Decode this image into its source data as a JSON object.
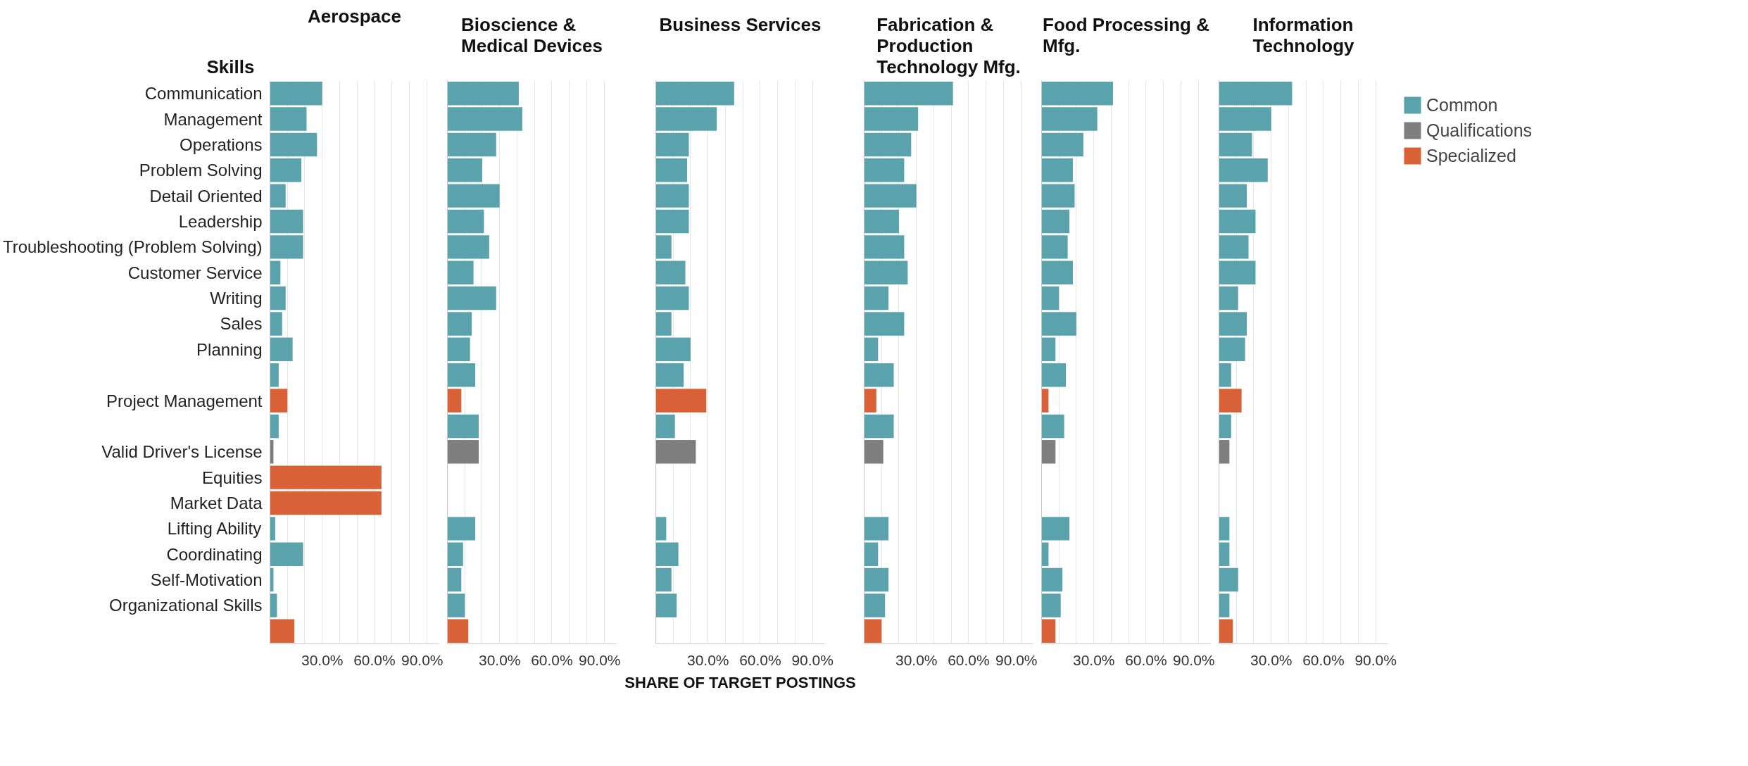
{
  "chart_data": [
    {
      "type": "bar",
      "orientation": "horizontal",
      "title": "Aerospace",
      "ylabel": "Skills",
      "categories": [
        "Communication",
        "Management",
        "Operations",
        "Problem Solving",
        "Detail Oriented",
        "Leadership",
        "Troubleshooting (Problem Solving)",
        "Customer Service",
        "Writing",
        "Sales",
        "Planning",
        null,
        "Project Management",
        null,
        "Valid Driver's License",
        "Equities",
        "Market Data",
        "Lifting Ability",
        "Coordinating",
        "Self-Motivation",
        "Organizational Skills",
        null
      ],
      "xlim": [
        0,
        97
      ],
      "xticks": [
        {
          "value": 10,
          "label": null
        },
        {
          "value": 20,
          "label": null
        },
        {
          "value": 30,
          "label": "30.0%"
        },
        {
          "value": 40,
          "label": null
        },
        {
          "value": 50,
          "label": null
        },
        {
          "value": 60,
          "label": "60.0%"
        },
        {
          "value": 70,
          "label": null
        },
        {
          "value": 80,
          "label": null
        },
        {
          "value": 90,
          "label": "90.0%"
        }
      ],
      "grid": "x",
      "legend": false,
      "series": [
        {
          "color": "#5ba3ac",
          "values": [
            30,
            21,
            27,
            18,
            9,
            19,
            19,
            6,
            9,
            7,
            13,
            5,
            null,
            5,
            null,
            null,
            null,
            3,
            19,
            2,
            4,
            null
          ]
        },
        {
          "color": "#7f7f7f",
          "values": [
            null,
            null,
            null,
            null,
            null,
            null,
            null,
            null,
            null,
            null,
            null,
            null,
            null,
            null,
            2,
            null,
            null,
            null,
            null,
            null,
            null,
            null
          ]
        },
        {
          "color": "#d86137",
          "values": [
            null,
            null,
            null,
            null,
            null,
            null,
            null,
            null,
            null,
            null,
            null,
            null,
            10,
            null,
            null,
            64,
            64,
            null,
            null,
            null,
            null,
            14
          ]
        }
      ]
    },
    {
      "type": "bar",
      "orientation": "horizontal",
      "title": "Bioscience & Medical Devices",
      "categories": [
        "Communication",
        "Management",
        "Operations",
        "Problem Solving",
        "Detail Oriented",
        "Leadership",
        "Troubleshooting (Problem Solving)",
        "Customer Service",
        "Writing",
        "Sales",
        "Planning",
        null,
        "Project Management",
        null,
        "Valid Driver's License",
        "Equities",
        "Market Data",
        "Lifting Ability",
        "Coordinating",
        "Self-Motivation",
        "Organizational Skills",
        null
      ],
      "xlim": [
        0,
        97
      ],
      "xticks": [
        {
          "value": 10,
          "label": null
        },
        {
          "value": 20,
          "label": null
        },
        {
          "value": 30,
          "label": "30.0%"
        },
        {
          "value": 40,
          "label": null
        },
        {
          "value": 50,
          "label": null
        },
        {
          "value": 60,
          "label": "60.0%"
        },
        {
          "value": 70,
          "label": null
        },
        {
          "value": 80,
          "label": null
        },
        {
          "value": 90,
          "label": "90.0%"
        }
      ],
      "grid": "x",
      "legend": false,
      "tick_labels": "x",
      "series": [
        {
          "color": "#5ba3ac",
          "values": [
            41,
            43,
            28,
            20,
            30,
            21,
            24,
            15,
            28,
            14,
            13,
            16,
            null,
            18,
            null,
            null,
            null,
            16,
            9,
            8,
            10,
            null
          ]
        },
        {
          "color": "#7f7f7f",
          "values": [
            null,
            null,
            null,
            null,
            null,
            null,
            null,
            null,
            null,
            null,
            null,
            null,
            null,
            null,
            18,
            null,
            null,
            null,
            null,
            null,
            null,
            null
          ]
        },
        {
          "color": "#d86137",
          "values": [
            null,
            null,
            null,
            null,
            null,
            null,
            null,
            null,
            null,
            null,
            null,
            null,
            8,
            null,
            null,
            null,
            null,
            null,
            null,
            null,
            null,
            12
          ]
        }
      ]
    },
    {
      "type": "bar",
      "orientation": "horizontal",
      "title": "Business Services",
      "xlabel": "SHARE OF TARGET POSTINGS",
      "categories": [
        "Communication",
        "Management",
        "Operations",
        "Problem Solving",
        "Detail Oriented",
        "Leadership",
        "Troubleshooting (Problem Solving)",
        "Customer Service",
        "Writing",
        "Sales",
        "Planning",
        null,
        "Project Management",
        null,
        "Valid Driver's License",
        "Equities",
        "Market Data",
        "Lifting Ability",
        "Coordinating",
        "Self-Motivation",
        "Organizational Skills",
        null
      ],
      "xlim": [
        0,
        97
      ],
      "xticks": [
        {
          "value": 10,
          "label": null
        },
        {
          "value": 20,
          "label": null
        },
        {
          "value": 30,
          "label": "30.0%"
        },
        {
          "value": 40,
          "label": null
        },
        {
          "value": 50,
          "label": null
        },
        {
          "value": 60,
          "label": "60.0%"
        },
        {
          "value": 70,
          "label": null
        },
        {
          "value": 80,
          "label": null
        },
        {
          "value": 90,
          "label": "90.0%"
        }
      ],
      "grid": "x",
      "legend": false,
      "tick_labels": "x",
      "series": [
        {
          "color": "#5ba3ac",
          "values": [
            45,
            35,
            19,
            18,
            19,
            19,
            9,
            17,
            19,
            9,
            20,
            16,
            null,
            11,
            null,
            null,
            null,
            6,
            13,
            9,
            12,
            null
          ]
        },
        {
          "color": "#7f7f7f",
          "values": [
            null,
            null,
            null,
            null,
            null,
            null,
            null,
            null,
            null,
            null,
            null,
            null,
            null,
            null,
            23,
            null,
            null,
            null,
            null,
            null,
            null,
            null
          ]
        },
        {
          "color": "#d86137",
          "values": [
            null,
            null,
            null,
            null,
            null,
            null,
            null,
            null,
            null,
            null,
            null,
            null,
            29,
            null,
            null,
            null,
            null,
            null,
            null,
            null,
            null,
            null
          ]
        }
      ]
    },
    {
      "type": "bar",
      "orientation": "horizontal",
      "title": "Fabrication & Production Technology Mfg.",
      "categories": [
        "Communication",
        "Management",
        "Operations",
        "Problem Solving",
        "Detail Oriented",
        "Leadership",
        "Troubleshooting (Problem Solving)",
        "Customer Service",
        "Writing",
        "Sales",
        "Planning",
        null,
        "Project Management",
        null,
        "Valid Driver's License",
        "Equities",
        "Market Data",
        "Lifting Ability",
        "Coordinating",
        "Self-Motivation",
        "Organizational Skills",
        null
      ],
      "xlim": [
        0,
        97
      ],
      "xticks": [
        {
          "value": 10,
          "label": null
        },
        {
          "value": 20,
          "label": null
        },
        {
          "value": 30,
          "label": "30.0%"
        },
        {
          "value": 40,
          "label": null
        },
        {
          "value": 50,
          "label": null
        },
        {
          "value": 60,
          "label": "60.0%"
        },
        {
          "value": 70,
          "label": null
        },
        {
          "value": 80,
          "label": null
        },
        {
          "value": 90,
          "label": "90.0%"
        }
      ],
      "grid": "x",
      "legend": false,
      "tick_labels": "x",
      "series": [
        {
          "color": "#5ba3ac",
          "values": [
            51,
            31,
            27,
            23,
            30,
            20,
            23,
            25,
            14,
            23,
            8,
            17,
            null,
            17,
            null,
            null,
            null,
            14,
            8,
            14,
            12,
            null
          ]
        },
        {
          "color": "#7f7f7f",
          "values": [
            null,
            null,
            null,
            null,
            null,
            null,
            null,
            null,
            null,
            null,
            null,
            null,
            null,
            null,
            11,
            null,
            null,
            null,
            null,
            null,
            null,
            null
          ]
        },
        {
          "color": "#d86137",
          "values": [
            null,
            null,
            null,
            null,
            null,
            null,
            null,
            null,
            null,
            null,
            null,
            null,
            7,
            null,
            null,
            null,
            null,
            null,
            null,
            null,
            null,
            10
          ]
        }
      ]
    },
    {
      "type": "bar",
      "orientation": "horizontal",
      "title": "Food Processing & Mfg.",
      "categories": [
        "Communication",
        "Management",
        "Operations",
        "Problem Solving",
        "Detail Oriented",
        "Leadership",
        "Troubleshooting (Problem Solving)",
        "Customer Service",
        "Writing",
        "Sales",
        "Planning",
        null,
        "Project Management",
        null,
        "Valid Driver's License",
        "Equities",
        "Market Data",
        "Lifting Ability",
        "Coordinating",
        "Self-Motivation",
        "Organizational Skills",
        null
      ],
      "xlim": [
        0,
        97
      ],
      "xticks": [
        {
          "value": 10,
          "label": null
        },
        {
          "value": 20,
          "label": null
        },
        {
          "value": 30,
          "label": "30.0%"
        },
        {
          "value": 40,
          "label": null
        },
        {
          "value": 50,
          "label": null
        },
        {
          "value": 60,
          "label": "60.0%"
        },
        {
          "value": 70,
          "label": null
        },
        {
          "value": 80,
          "label": null
        },
        {
          "value": 90,
          "label": "90.0%"
        }
      ],
      "grid": "x",
      "legend": false,
      "tick_labels": "x",
      "series": [
        {
          "color": "#5ba3ac",
          "values": [
            41,
            32,
            24,
            18,
            19,
            16,
            15,
            18,
            10,
            20,
            8,
            14,
            null,
            13,
            null,
            null,
            null,
            16,
            4,
            12,
            11,
            null
          ]
        },
        {
          "color": "#7f7f7f",
          "values": [
            null,
            null,
            null,
            null,
            null,
            null,
            null,
            null,
            null,
            null,
            null,
            null,
            null,
            null,
            8,
            null,
            null,
            null,
            null,
            null,
            null,
            null
          ]
        },
        {
          "color": "#d86137",
          "values": [
            null,
            null,
            null,
            null,
            null,
            null,
            null,
            null,
            null,
            null,
            null,
            null,
            4,
            null,
            null,
            null,
            null,
            null,
            null,
            null,
            null,
            8
          ]
        }
      ]
    },
    {
      "type": "bar",
      "orientation": "horizontal",
      "title": "Information Technology",
      "categories": [
        "Communication",
        "Management",
        "Operations",
        "Problem Solving",
        "Detail Oriented",
        "Leadership",
        "Troubleshooting (Problem Solving)",
        "Customer Service",
        "Writing",
        "Sales",
        "Planning",
        null,
        "Project Management",
        null,
        "Valid Driver's License",
        "Equities",
        "Market Data",
        "Lifting Ability",
        "Coordinating",
        "Self-Motivation",
        "Organizational Skills",
        null
      ],
      "xlim": [
        0,
        97
      ],
      "xticks": [
        {
          "value": 10,
          "label": null
        },
        {
          "value": 20,
          "label": null
        },
        {
          "value": 30,
          "label": "30.0%"
        },
        {
          "value": 40,
          "label": null
        },
        {
          "value": 50,
          "label": null
        },
        {
          "value": 60,
          "label": "60.0%"
        },
        {
          "value": 70,
          "label": null
        },
        {
          "value": 80,
          "label": null
        },
        {
          "value": 90,
          "label": "90.0%"
        }
      ],
      "grid": "x",
      "legend": "top right",
      "tick_labels": "x",
      "series": [
        {
          "name": "Common",
          "color": "#5ba3ac",
          "values": [
            42,
            30,
            19,
            28,
            16,
            21,
            17,
            21,
            11,
            16,
            15,
            7,
            null,
            7,
            null,
            null,
            null,
            6,
            6,
            11,
            6,
            null
          ]
        },
        {
          "name": "Qualifications",
          "color": "#7f7f7f",
          "values": [
            null,
            null,
            null,
            null,
            null,
            null,
            null,
            null,
            null,
            null,
            null,
            null,
            null,
            null,
            6,
            null,
            null,
            null,
            null,
            null,
            null,
            null
          ]
        },
        {
          "name": "Specialized",
          "color": "#d86137",
          "values": [
            null,
            null,
            null,
            null,
            null,
            null,
            null,
            null,
            null,
            null,
            null,
            null,
            13,
            null,
            null,
            null,
            null,
            null,
            null,
            null,
            null,
            8
          ]
        }
      ]
    }
  ]
}
